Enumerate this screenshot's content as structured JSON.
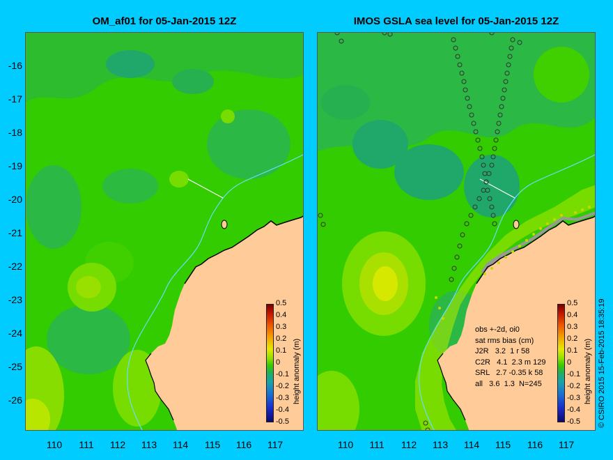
{
  "panels": {
    "left_title": "OM_af01 for 05-Jan-2015 12Z",
    "right_title": "IMOS GSLA sea level  for 05-Jan-2015 12Z"
  },
  "axes": {
    "y_ticks": [
      "-16",
      "-17",
      "-18",
      "-19",
      "-20",
      "-21",
      "-22",
      "-23",
      "-24",
      "-25",
      "-26"
    ],
    "x_ticks": [
      "110",
      "111",
      "112",
      "113",
      "114",
      "115",
      "116",
      "117"
    ]
  },
  "colorbar": {
    "ticks": [
      "0.5",
      "0.4",
      "0.3",
      "0.2",
      "0.1",
      "0",
      "-0.1",
      "-0.2",
      "-0.3",
      "-0.4",
      "-0.5"
    ],
    "title": "height anomaly (m)"
  },
  "stats_box": {
    "line1": "obs +-2d, oi0",
    "line2": "sat rms bias (cm)",
    "line3": "J2R   3.2  1 r 58",
    "line4": "C2R   4.1  2.3 m 129",
    "line5": "SRL   2.7 -0.35 k 58",
    "line6": "all   3.6  1.3  N=245"
  },
  "copyright": "© CSIRO 2015   15-Feb-2015 18:35:19",
  "colors": {
    "background": "#00ccff",
    "land": "#ffcc99",
    "sea_base": "#33cc00",
    "isobath": "#66ddff"
  }
}
